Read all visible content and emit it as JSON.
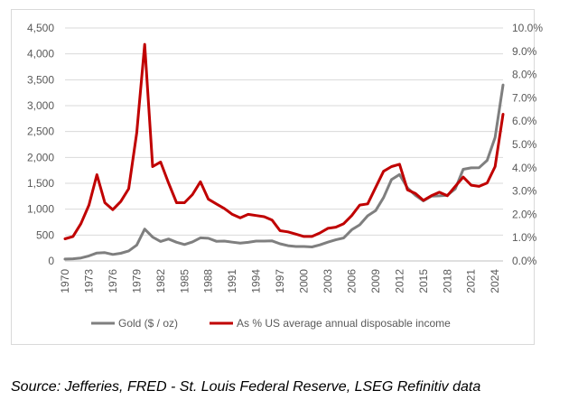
{
  "chart_data": {
    "type": "line",
    "title": "",
    "xlabel": "",
    "ylabel": "",
    "x": [
      1970,
      1971,
      1972,
      1973,
      1974,
      1975,
      1976,
      1977,
      1978,
      1979,
      1980,
      1981,
      1982,
      1983,
      1984,
      1985,
      1986,
      1987,
      1988,
      1989,
      1990,
      1991,
      1992,
      1993,
      1994,
      1995,
      1996,
      1997,
      1998,
      1999,
      2000,
      2001,
      2002,
      2003,
      2004,
      2005,
      2006,
      2007,
      2008,
      2009,
      2010,
      2011,
      2012,
      2013,
      2014,
      2015,
      2016,
      2017,
      2018,
      2019,
      2020,
      2021,
      2022,
      2023,
      2024,
      2025
    ],
    "x_tick_labels": [
      "1970",
      "1973",
      "1976",
      "1979",
      "1982",
      "1985",
      "1988",
      "1991",
      "1994",
      "1997",
      "2000",
      "2003",
      "2006",
      "2009",
      "2012",
      "2015",
      "2018",
      "2021",
      "2024"
    ],
    "x_tick_values": [
      1970,
      1973,
      1976,
      1979,
      1982,
      1985,
      1988,
      1991,
      1994,
      1997,
      2000,
      2003,
      2006,
      2009,
      2012,
      2015,
      2018,
      2021,
      2024
    ],
    "y_left": {
      "ylim": [
        0,
        4500
      ],
      "tick_labels": [
        "0",
        "500",
        "1,000",
        "1,500",
        "2,000",
        "2,500",
        "3,000",
        "3,500",
        "4,000",
        "4,500"
      ],
      "tick_values": [
        0,
        500,
        1000,
        1500,
        2000,
        2500,
        3000,
        3500,
        4000,
        4500
      ]
    },
    "y_right": {
      "ylim": [
        0,
        10
      ],
      "tick_labels": [
        "0.0%",
        "1.0%",
        "2.0%",
        "3.0%",
        "4.0%",
        "5.0%",
        "6.0%",
        "7.0%",
        "8.0%",
        "9.0%",
        "10.0%"
      ],
      "tick_values": [
        0,
        1,
        2,
        3,
        4,
        5,
        6,
        7,
        8,
        9,
        10
      ]
    },
    "grid": "horizontal",
    "legend_position": "bottom",
    "series": [
      {
        "name": "Gold ($ / oz)",
        "axis": "left",
        "color": "#7f7f7f",
        "values": [
          36,
          41,
          58,
          97,
          154,
          161,
          125,
          148,
          193,
          307,
          615,
          460,
          376,
          424,
          361,
          317,
          368,
          447,
          437,
          381,
          383,
          362,
          344,
          360,
          384,
          384,
          388,
          331,
          294,
          279,
          279,
          271,
          310,
          363,
          409,
          445,
          604,
          697,
          872,
          972,
          1225,
          1572,
          1669,
          1411,
          1266,
          1160,
          1251,
          1257,
          1269,
          1392,
          1770,
          1799,
          1801,
          1943,
          2386,
          3400
        ]
      },
      {
        "name": "As % US average annual disposable income",
        "axis": "right",
        "color": "#c00000",
        "values": [
          0.95,
          1.05,
          1.6,
          2.4,
          3.7,
          2.5,
          2.2,
          2.55,
          3.1,
          5.5,
          9.3,
          4.05,
          4.25,
          3.35,
          2.5,
          2.5,
          2.85,
          3.4,
          2.65,
          2.45,
          2.25,
          2.0,
          1.85,
          2.0,
          1.95,
          1.9,
          1.75,
          1.3,
          1.25,
          1.15,
          1.05,
          1.05,
          1.2,
          1.4,
          1.45,
          1.6,
          1.95,
          2.4,
          2.45,
          3.15,
          3.85,
          4.05,
          4.15,
          3.05,
          2.9,
          2.6,
          2.8,
          2.95,
          2.8,
          3.2,
          3.6,
          3.25,
          3.2,
          3.35,
          4.05,
          6.3
        ]
      }
    ]
  },
  "footer": {
    "source": "Source: Jefferies, FRED - St. Louis Federal Reserve, LSEG Refinitiv data"
  }
}
